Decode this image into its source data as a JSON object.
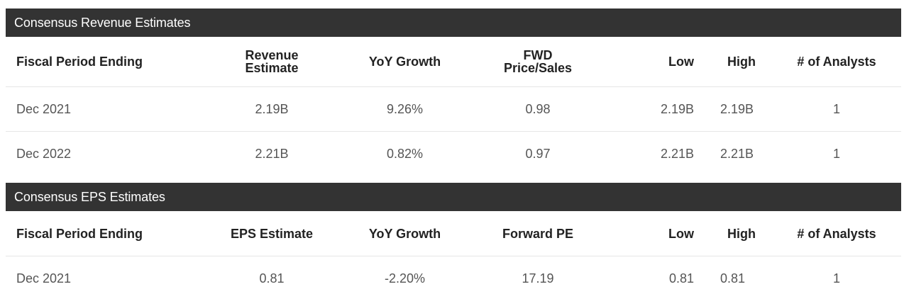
{
  "revenue": {
    "title": "Consensus Revenue Estimates",
    "headers": {
      "period": "Fiscal Period Ending",
      "estimate_l1": "Revenue",
      "estimate_l2": "Estimate",
      "growth": "YoY Growth",
      "ratio_l1": "FWD",
      "ratio_l2": "Price/Sales",
      "low": "Low",
      "high": "High",
      "analysts": "# of Analysts"
    },
    "rows": [
      {
        "period": "Dec 2021",
        "estimate": "2.19B",
        "growth": "9.26%",
        "ratio": "0.98",
        "low": "2.19B",
        "high": "2.19B",
        "analysts": "1"
      },
      {
        "period": "Dec 2022",
        "estimate": "2.21B",
        "growth": "0.82%",
        "ratio": "0.97",
        "low": "2.21B",
        "high": "2.21B",
        "analysts": "1"
      }
    ]
  },
  "eps": {
    "title": "Consensus EPS Estimates",
    "headers": {
      "period": "Fiscal Period Ending",
      "estimate": "EPS Estimate",
      "growth": "YoY Growth",
      "ratio": "Forward PE",
      "low": "Low",
      "high": "High",
      "analysts": "# of Analysts"
    },
    "rows": [
      {
        "period": "Dec 2021",
        "estimate": "0.81",
        "growth": "-2.20%",
        "ratio": "17.19",
        "low": "0.81",
        "high": "0.81",
        "analysts": "1"
      }
    ]
  },
  "colors": {
    "header_bg": "#333333",
    "header_text": "#ffffff",
    "row_border": "#e6e6e6"
  }
}
